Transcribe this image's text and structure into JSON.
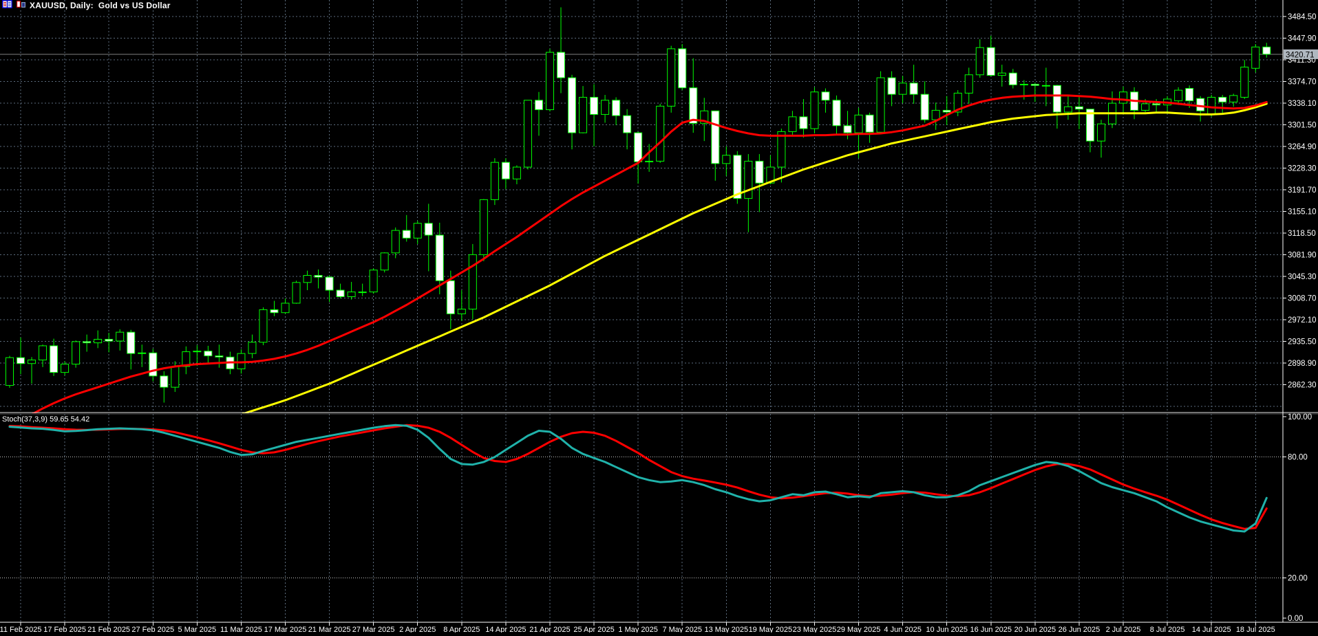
{
  "window": {
    "title": "XAUUSD, Daily:  Gold vs US Dollar",
    "icons": [
      "journal-window-icon",
      "bar-chart-window-icon"
    ]
  },
  "indicator_panel": {
    "label": "Stoch(37,3,9) 59.65 54.42",
    "name": "Stochastic Oscillator",
    "main_value": "59.65",
    "signal_value": "54.42"
  },
  "current_price_tag": "3420.71",
  "colors": {
    "background": "#000000",
    "grid": "#5d6d7e",
    "candle_outline": "#00ff00",
    "bull_body": "#000000",
    "bear_body": "#ffffff",
    "ma_fast": "#ff0000",
    "ma_slow": "#ffff00",
    "stoch_main": "#20b2aa",
    "stoch_signal": "#ff0000",
    "axis_text": "#ffffff",
    "price_line": "#808080",
    "price_tag_bg": "#b0b8c0",
    "level_line": "#c8c8c8"
  },
  "chart_data": {
    "type": "candlestick",
    "symbol": "XAUUSD",
    "timeframe": "Daily",
    "description": "Gold vs US Dollar",
    "current_price": 3420.71,
    "y_axis": {
      "labels": [
        "3484.50",
        "3447.90",
        "3411.30",
        "3374.70",
        "3338.10",
        "3301.50",
        "3264.90",
        "3228.30",
        "3191.70",
        "3155.10",
        "3118.50",
        "3081.90",
        "3045.30",
        "3008.70",
        "2972.10",
        "2935.50",
        "2898.90",
        "2862.30"
      ],
      "range_visible": [
        2815.0,
        3512.0
      ]
    },
    "x_axis": {
      "labels": [
        "11 Feb 2025",
        "17 Feb 2025",
        "21 Feb 2025",
        "27 Feb 2025",
        "5 Mar 2025",
        "11 Mar 2025",
        "17 Mar 2025",
        "21 Mar 2025",
        "27 Mar 2025",
        "2 Apr 2025",
        "8 Apr 2025",
        "14 Apr 2025",
        "21 Apr 2025",
        "25 Apr 2025",
        "1 May 2025",
        "7 May 2025",
        "13 May 2025",
        "19 May 2025",
        "23 May 2025",
        "29 May 2025",
        "4 Jun 2025",
        "10 Jun 2025",
        "16 Jun 2025",
        "20 Jun 2025",
        "26 Jun 2025",
        "2 Jul 2025",
        "8 Jul 2025",
        "14 Jul 2025",
        "18 Jul 2025"
      ],
      "label_every_n_candles": 4,
      "first_label_candle_index": 1
    },
    "sub_window": {
      "type": "line",
      "indicator": "Stoch(37,3,9)",
      "y_labels": [
        "100.00",
        "80.00",
        "20.00",
        "0.00"
      ],
      "y_label_values": [
        100,
        80,
        20,
        0
      ],
      "level_lines": [
        80,
        20
      ],
      "last_main": 59.65,
      "last_signal": 54.42
    },
    "candles": [
      [
        "10 Feb",
        2861,
        2911,
        2857,
        2908
      ],
      [
        "11 Feb",
        2908,
        2942,
        2880,
        2898
      ],
      [
        "12 Feb",
        2898,
        2909,
        2864,
        2904
      ],
      [
        "13 Feb",
        2904,
        2930,
        2892,
        2928
      ],
      [
        "14 Feb",
        2928,
        2940,
        2877,
        2883
      ],
      [
        "17 Feb",
        2883,
        2902,
        2878,
        2897
      ],
      [
        "18 Feb",
        2897,
        2937,
        2891,
        2935
      ],
      [
        "19 Feb",
        2935,
        2947,
        2918,
        2933
      ],
      [
        "20 Feb",
        2933,
        2954,
        2924,
        2939
      ],
      [
        "21 Feb",
        2939,
        2950,
        2917,
        2936
      ],
      [
        "24 Feb",
        2936,
        2956,
        2920,
        2951
      ],
      [
        "25 Feb",
        2951,
        2955,
        2888,
        2915
      ],
      [
        "26 Feb",
        2915,
        2930,
        2892,
        2916
      ],
      [
        "27 Feb",
        2916,
        2923,
        2868,
        2877
      ],
      [
        "28 Feb",
        2877,
        2885,
        2832,
        2858
      ],
      [
        "3 Mar",
        2858,
        2902,
        2850,
        2893
      ],
      [
        "4 Mar",
        2893,
        2927,
        2880,
        2918
      ],
      [
        "5 Mar",
        2918,
        2929,
        2894,
        2919
      ],
      [
        "6 Mar",
        2919,
        2928,
        2897,
        2911
      ],
      [
        "7 Mar",
        2911,
        2930,
        2891,
        2909
      ],
      [
        "10 Mar",
        2909,
        2918,
        2880,
        2889
      ],
      [
        "11 Mar",
        2889,
        2922,
        2881,
        2915
      ],
      [
        "12 Mar",
        2915,
        2947,
        2907,
        2934
      ],
      [
        "13 Mar",
        2934,
        2993,
        2929,
        2989
      ],
      [
        "14 Mar",
        2989,
        3004,
        2978,
        2984
      ],
      [
        "17 Mar",
        2984,
        3008,
        2982,
        3000
      ],
      [
        "18 Mar",
        3000,
        3038,
        2999,
        3035
      ],
      [
        "19 Mar",
        3035,
        3055,
        3022,
        3047
      ],
      [
        "20 Mar",
        3047,
        3057,
        3025,
        3044
      ],
      [
        "21 Mar",
        3044,
        3047,
        3002,
        3022
      ],
      [
        "24 Mar",
        3022,
        3033,
        3008,
        3011
      ],
      [
        "25 Mar",
        3011,
        3036,
        3006,
        3019
      ],
      [
        "26 Mar",
        3019,
        3033,
        3012,
        3019
      ],
      [
        "27 Mar",
        3019,
        3059,
        3016,
        3056
      ],
      [
        "28 Mar",
        3056,
        3086,
        3052,
        3085
      ],
      [
        "31 Mar",
        3085,
        3128,
        3076,
        3123
      ],
      [
        "1 Apr",
        3123,
        3149,
        3104,
        3110
      ],
      [
        "2 Apr",
        3110,
        3139,
        3100,
        3135
      ],
      [
        "3 Apr",
        3135,
        3168,
        3054,
        3115
      ],
      [
        "4 Apr",
        3115,
        3136,
        3015,
        3038
      ],
      [
        "7 Apr",
        3038,
        3055,
        2956,
        2982
      ],
      [
        "8 Apr",
        2982,
        3022,
        2970,
        2990
      ],
      [
        "9 Apr",
        2990,
        3100,
        2973,
        3082
      ],
      [
        "10 Apr",
        3082,
        3176,
        3071,
        3175
      ],
      [
        "11 Apr",
        3175,
        3245,
        3166,
        3238
      ],
      [
        "14 Apr",
        3238,
        3245,
        3193,
        3210
      ],
      [
        "15 Apr",
        3210,
        3233,
        3201,
        3230
      ],
      [
        "16 Apr",
        3230,
        3343,
        3226,
        3343
      ],
      [
        "17 Apr",
        3343,
        3357,
        3283,
        3327
      ],
      [
        "21 Apr",
        3327,
        3430,
        3324,
        3424
      ],
      [
        "22 Apr",
        3424,
        3500,
        3355,
        3381
      ],
      [
        "23 Apr",
        3381,
        3386,
        3260,
        3288
      ],
      [
        "24 Apr",
        3288,
        3367,
        3287,
        3348
      ],
      [
        "25 Apr",
        3348,
        3370,
        3265,
        3319
      ],
      [
        "28 Apr",
        3319,
        3352,
        3305,
        3343
      ],
      [
        "29 Apr",
        3343,
        3348,
        3301,
        3317
      ],
      [
        "30 Apr",
        3317,
        3328,
        3260,
        3288
      ],
      [
        "1 May",
        3288,
        3290,
        3202,
        3239
      ],
      [
        "2 May",
        3239,
        3269,
        3222,
        3240
      ],
      [
        "5 May",
        3240,
        3337,
        3237,
        3333
      ],
      [
        "6 May",
        3333,
        3435,
        3322,
        3430
      ],
      [
        "7 May",
        3430,
        3438,
        3360,
        3364
      ],
      [
        "8 May",
        3364,
        3414,
        3288,
        3304
      ],
      [
        "9 May",
        3304,
        3347,
        3274,
        3325
      ],
      [
        "12 May",
        3325,
        3325,
        3207,
        3236
      ],
      [
        "13 May",
        3236,
        3265,
        3215,
        3250
      ],
      [
        "14 May",
        3250,
        3257,
        3168,
        3177
      ],
      [
        "15 May",
        3177,
        3252,
        3120,
        3240
      ],
      [
        "16 May",
        3240,
        3252,
        3154,
        3203
      ],
      [
        "19 May",
        3203,
        3250,
        3201,
        3230
      ],
      [
        "20 May",
        3230,
        3295,
        3204,
        3290
      ],
      [
        "21 May",
        3290,
        3325,
        3282,
        3315
      ],
      [
        "22 May",
        3315,
        3345,
        3280,
        3295
      ],
      [
        "23 May",
        3295,
        3365,
        3287,
        3357
      ],
      [
        "26 May",
        3357,
        3363,
        3322,
        3343
      ],
      [
        "27 May",
        3343,
        3351,
        3285,
        3300
      ],
      [
        "28 May",
        3300,
        3325,
        3277,
        3288
      ],
      [
        "29 May",
        3288,
        3330,
        3245,
        3318
      ],
      [
        "30 May",
        3318,
        3322,
        3271,
        3289
      ],
      [
        "2 Jun",
        3289,
        3392,
        3288,
        3381
      ],
      [
        "3 Jun",
        3381,
        3392,
        3333,
        3353
      ],
      [
        "4 Jun",
        3353,
        3384,
        3338,
        3372
      ],
      [
        "5 Jun",
        3372,
        3403,
        3337,
        3353
      ],
      [
        "6 Jun",
        3353,
        3375,
        3305,
        3310
      ],
      [
        "9 Jun",
        3310,
        3339,
        3293,
        3326
      ],
      [
        "10 Jun",
        3326,
        3350,
        3301,
        3323
      ],
      [
        "11 Jun",
        3323,
        3360,
        3316,
        3355
      ],
      [
        "12 Jun",
        3355,
        3398,
        3337,
        3386
      ],
      [
        "13 Jun",
        3386,
        3446,
        3381,
        3432
      ],
      [
        "16 Jun",
        3432,
        3452,
        3383,
        3385
      ],
      [
        "17 Jun",
        3385,
        3403,
        3366,
        3389
      ],
      [
        "18 Jun",
        3389,
        3396,
        3363,
        3369
      ],
      [
        "19 Jun",
        3369,
        3377,
        3344,
        3370
      ],
      [
        "20 Jun",
        3370,
        3372,
        3340,
        3368
      ],
      [
        "23 Jun",
        3368,
        3398,
        3333,
        3368
      ],
      [
        "24 Jun",
        3368,
        3369,
        3295,
        3323
      ],
      [
        "25 Jun",
        3323,
        3350,
        3310,
        3332
      ],
      [
        "26 Jun",
        3332,
        3350,
        3294,
        3328
      ],
      [
        "27 Jun",
        3328,
        3328,
        3255,
        3274
      ],
      [
        "30 Jun",
        3274,
        3310,
        3246,
        3303
      ],
      [
        "1 Jul",
        3303,
        3358,
        3296,
        3338
      ],
      [
        "2 Jul",
        3338,
        3366,
        3320,
        3357
      ],
      [
        "3 Jul",
        3357,
        3365,
        3311,
        3326
      ],
      [
        "4 Jul",
        3326,
        3345,
        3323,
        3337
      ],
      [
        "7 Jul",
        3337,
        3345,
        3323,
        3335
      ],
      [
        "8 Jul",
        3335,
        3350,
        3320,
        3345
      ],
      [
        "9 Jul",
        3342,
        3365,
        3335,
        3360
      ],
      [
        "10 Jul",
        3363,
        3368,
        3330,
        3342
      ],
      [
        "11 Jul",
        3346,
        3350,
        3307,
        3325
      ],
      [
        "14 Jul",
        3320,
        3352,
        3315,
        3348
      ],
      [
        "15 Jul",
        3348,
        3352,
        3320,
        3340
      ],
      [
        "16 Jul",
        3340,
        3354,
        3332,
        3351
      ],
      [
        "17 Jul",
        3348,
        3411,
        3345,
        3399
      ],
      [
        "18 Jul",
        3397,
        3438,
        3390,
        3433
      ],
      [
        "21 Jul",
        3433,
        3440,
        3415,
        3420.71
      ]
    ],
    "ma_fast_red": [
      2790,
      2800,
      2812,
      2822,
      2831,
      2839,
      2846,
      2852,
      2858,
      2864,
      2870,
      2876,
      2881,
      2886,
      2890,
      2893,
      2895,
      2897,
      2898,
      2899,
      2900,
      2900,
      2901,
      2903,
      2906,
      2910,
      2915,
      2921,
      2928,
      2936,
      2944,
      2952,
      2960,
      2968,
      2977,
      2987,
      2997,
      3008,
      3019,
      3030,
      3041,
      3052,
      3063,
      3075,
      3088,
      3100,
      3112,
      3125,
      3138,
      3151,
      3164,
      3176,
      3187,
      3197,
      3207,
      3217,
      3227,
      3237,
      3255,
      3272,
      3290,
      3305,
      3310,
      3308,
      3302,
      3296,
      3291,
      3287,
      3284,
      3283,
      3283,
      3283,
      3283,
      3284,
      3284,
      3285,
      3285,
      3286,
      3286,
      3287,
      3289,
      3292,
      3296,
      3300,
      3308,
      3318,
      3327,
      3334,
      3340,
      3344,
      3347,
      3349,
      3350,
      3351,
      3351,
      3351,
      3351,
      3350,
      3349,
      3347,
      3345,
      3344,
      3342,
      3341,
      3340,
      3339,
      3337,
      3335,
      3333,
      3331,
      3330,
      3329,
      3330,
      3334,
      3340
    ],
    "ma_slow_yellow": [
      null,
      null,
      null,
      null,
      null,
      null,
      null,
      null,
      null,
      null,
      null,
      null,
      null,
      null,
      null,
      null,
      null,
      null,
      null,
      null,
      null,
      2812,
      2818,
      2824,
      2830,
      2836,
      2843,
      2850,
      2857,
      2864,
      2872,
      2880,
      2888,
      2896,
      2904,
      2912,
      2920,
      2928,
      2936,
      2944,
      2952,
      2960,
      2968,
      2976,
      2985,
      2994,
      3003,
      3012,
      3021,
      3030,
      3040,
      3050,
      3060,
      3070,
      3080,
      3089,
      3098,
      3107,
      3116,
      3125,
      3134,
      3143,
      3152,
      3160,
      3168,
      3176,
      3184,
      3191,
      3198,
      3205,
      3212,
      3219,
      3226,
      3232,
      3238,
      3244,
      3250,
      3255,
      3260,
      3265,
      3270,
      3274,
      3278,
      3282,
      3286,
      3290,
      3294,
      3298,
      3302,
      3306,
      3309,
      3312,
      3314,
      3316,
      3318,
      3319,
      3320,
      3321,
      3321,
      3321,
      3321,
      3321,
      3321,
      3321,
      3322,
      3322,
      3321,
      3320,
      3319,
      3319,
      3320,
      3322,
      3326,
      3331,
      3337
    ],
    "stoch_main": [
      95.0,
      94.6,
      94.2,
      94.0,
      93.4,
      92.7,
      92.9,
      93.3,
      93.8,
      94.0,
      94.2,
      94.0,
      93.8,
      93.2,
      92.0,
      90.5,
      89.0,
      87.5,
      86.0,
      84.5,
      82.5,
      81.0,
      81.3,
      83.0,
      84.5,
      86.0,
      87.5,
      88.5,
      89.5,
      90.5,
      91.5,
      92.5,
      93.5,
      94.5,
      95.3,
      95.8,
      95.5,
      93.5,
      89.5,
      84.0,
      79.0,
      76.5,
      76.2,
      77.5,
      80.0,
      83.5,
      87.0,
      90.5,
      93.0,
      92.5,
      89.0,
      84.5,
      81.5,
      79.5,
      77.5,
      75.0,
      72.5,
      70.0,
      68.5,
      67.5,
      67.8,
      68.5,
      67.5,
      66.0,
      64.0,
      62.5,
      60.5,
      59.0,
      58.0,
      58.5,
      60.0,
      61.5,
      61.0,
      62.5,
      62.8,
      61.5,
      60.0,
      60.5,
      60.0,
      62.0,
      62.5,
      63.0,
      62.5,
      61.0,
      60.0,
      60.0,
      61.0,
      63.0,
      66.0,
      68.0,
      70.0,
      72.0,
      74.0,
      76.0,
      77.5,
      77.0,
      75.5,
      73.0,
      70.0,
      67.0,
      65.0,
      63.5,
      62.0,
      60.0,
      58.0,
      55.0,
      52.5,
      50.0,
      48.0,
      46.5,
      45.0,
      43.5,
      43.0,
      47.0,
      59.65
    ],
    "stoch_signal": [
      95.4,
      95.2,
      94.8,
      94.5,
      94.2,
      93.8,
      93.5,
      93.4,
      93.5,
      93.7,
      93.9,
      94.0,
      93.9,
      93.7,
      93.2,
      92.3,
      91.0,
      89.7,
      88.3,
      86.8,
      85.2,
      83.5,
      82.3,
      81.8,
      82.3,
      83.5,
      85.0,
      86.5,
      87.8,
      89.0,
      90.2,
      91.2,
      92.2,
      93.2,
      94.2,
      95.0,
      95.8,
      95.5,
      94.5,
      92.5,
      89.5,
      86.0,
      82.5,
      79.5,
      78.0,
      77.5,
      79.0,
      81.5,
      84.5,
      87.5,
      90.0,
      91.8,
      92.5,
      92.0,
      90.5,
      88.0,
      85.0,
      82.0,
      78.5,
      75.5,
      72.5,
      70.5,
      69.2,
      68.3,
      67.3,
      66.2,
      64.8,
      63.0,
      61.3,
      60.0,
      59.5,
      59.8,
      60.5,
      61.3,
      62.0,
      62.3,
      61.8,
      61.0,
      60.5,
      60.8,
      61.3,
      62.0,
      62.5,
      62.3,
      61.5,
      60.8,
      60.5,
      61.0,
      62.5,
      64.5,
      66.8,
      69.0,
      71.3,
      73.5,
      75.3,
      76.5,
      76.5,
      75.5,
      73.8,
      71.3,
      68.8,
      66.3,
      64.3,
      62.5,
      60.8,
      58.8,
      56.3,
      53.8,
      51.3,
      49.0,
      47.2,
      45.7,
      44.3,
      44.8,
      54.42
    ]
  }
}
